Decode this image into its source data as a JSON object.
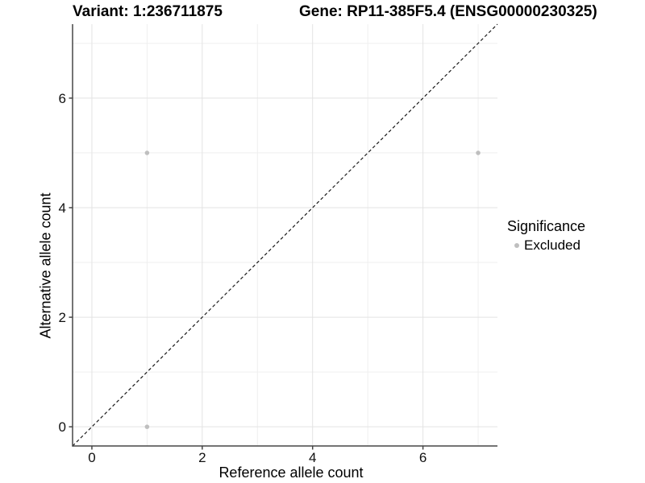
{
  "header": {
    "variant_title": "Variant: 1:236711875",
    "gene_title": "Gene: RP11-385F5.4 (ENSG00000230325)"
  },
  "chart_data": {
    "type": "scatter",
    "title_left": "Variant: 1:236711875",
    "title_right": "Gene: RP11-385F5.4 (ENSG00000230325)",
    "xlabel": "Reference allele count",
    "ylabel": "Alternative allele count",
    "xlim": [
      -0.35,
      7.35
    ],
    "ylim": [
      -0.35,
      7.35
    ],
    "x_ticks": [
      0,
      2,
      4,
      6
    ],
    "y_ticks": [
      0,
      2,
      4,
      6
    ],
    "x_tick_labels": [
      "0",
      "2",
      "4",
      "6"
    ],
    "y_tick_labels": [
      "0",
      "2",
      "4",
      "6"
    ],
    "x_minor_gridlines": [
      1,
      3,
      5,
      7
    ],
    "y_minor_gridlines": [
      1,
      3,
      5,
      7
    ],
    "grid": true,
    "series": [
      {
        "name": "Excluded",
        "marker": "circle",
        "color": "#bfbfbf",
        "points": [
          {
            "x": 1,
            "y": 0
          },
          {
            "x": 1,
            "y": 5
          },
          {
            "x": 7,
            "y": 5
          }
        ]
      }
    ],
    "reference_line": {
      "kind": "identity-diagonal",
      "from": {
        "x": -0.35,
        "y": -0.35
      },
      "to": {
        "x": 7.35,
        "y": 7.35
      },
      "style": "dashed",
      "color": "#1a1a1a"
    },
    "legend": {
      "title": "Significance",
      "position": "right",
      "entries": [
        {
          "label": "Excluded",
          "marker": "circle",
          "color": "#bfbfbf"
        }
      ]
    },
    "colors": {
      "background": "#ffffff",
      "grid_major": "#e3e3e3",
      "grid_minor": "#efefef",
      "axis_line": "#464646",
      "tick_label": "#111111",
      "point": "#bfbfbf",
      "diagonal": "#1a1a1a"
    }
  }
}
